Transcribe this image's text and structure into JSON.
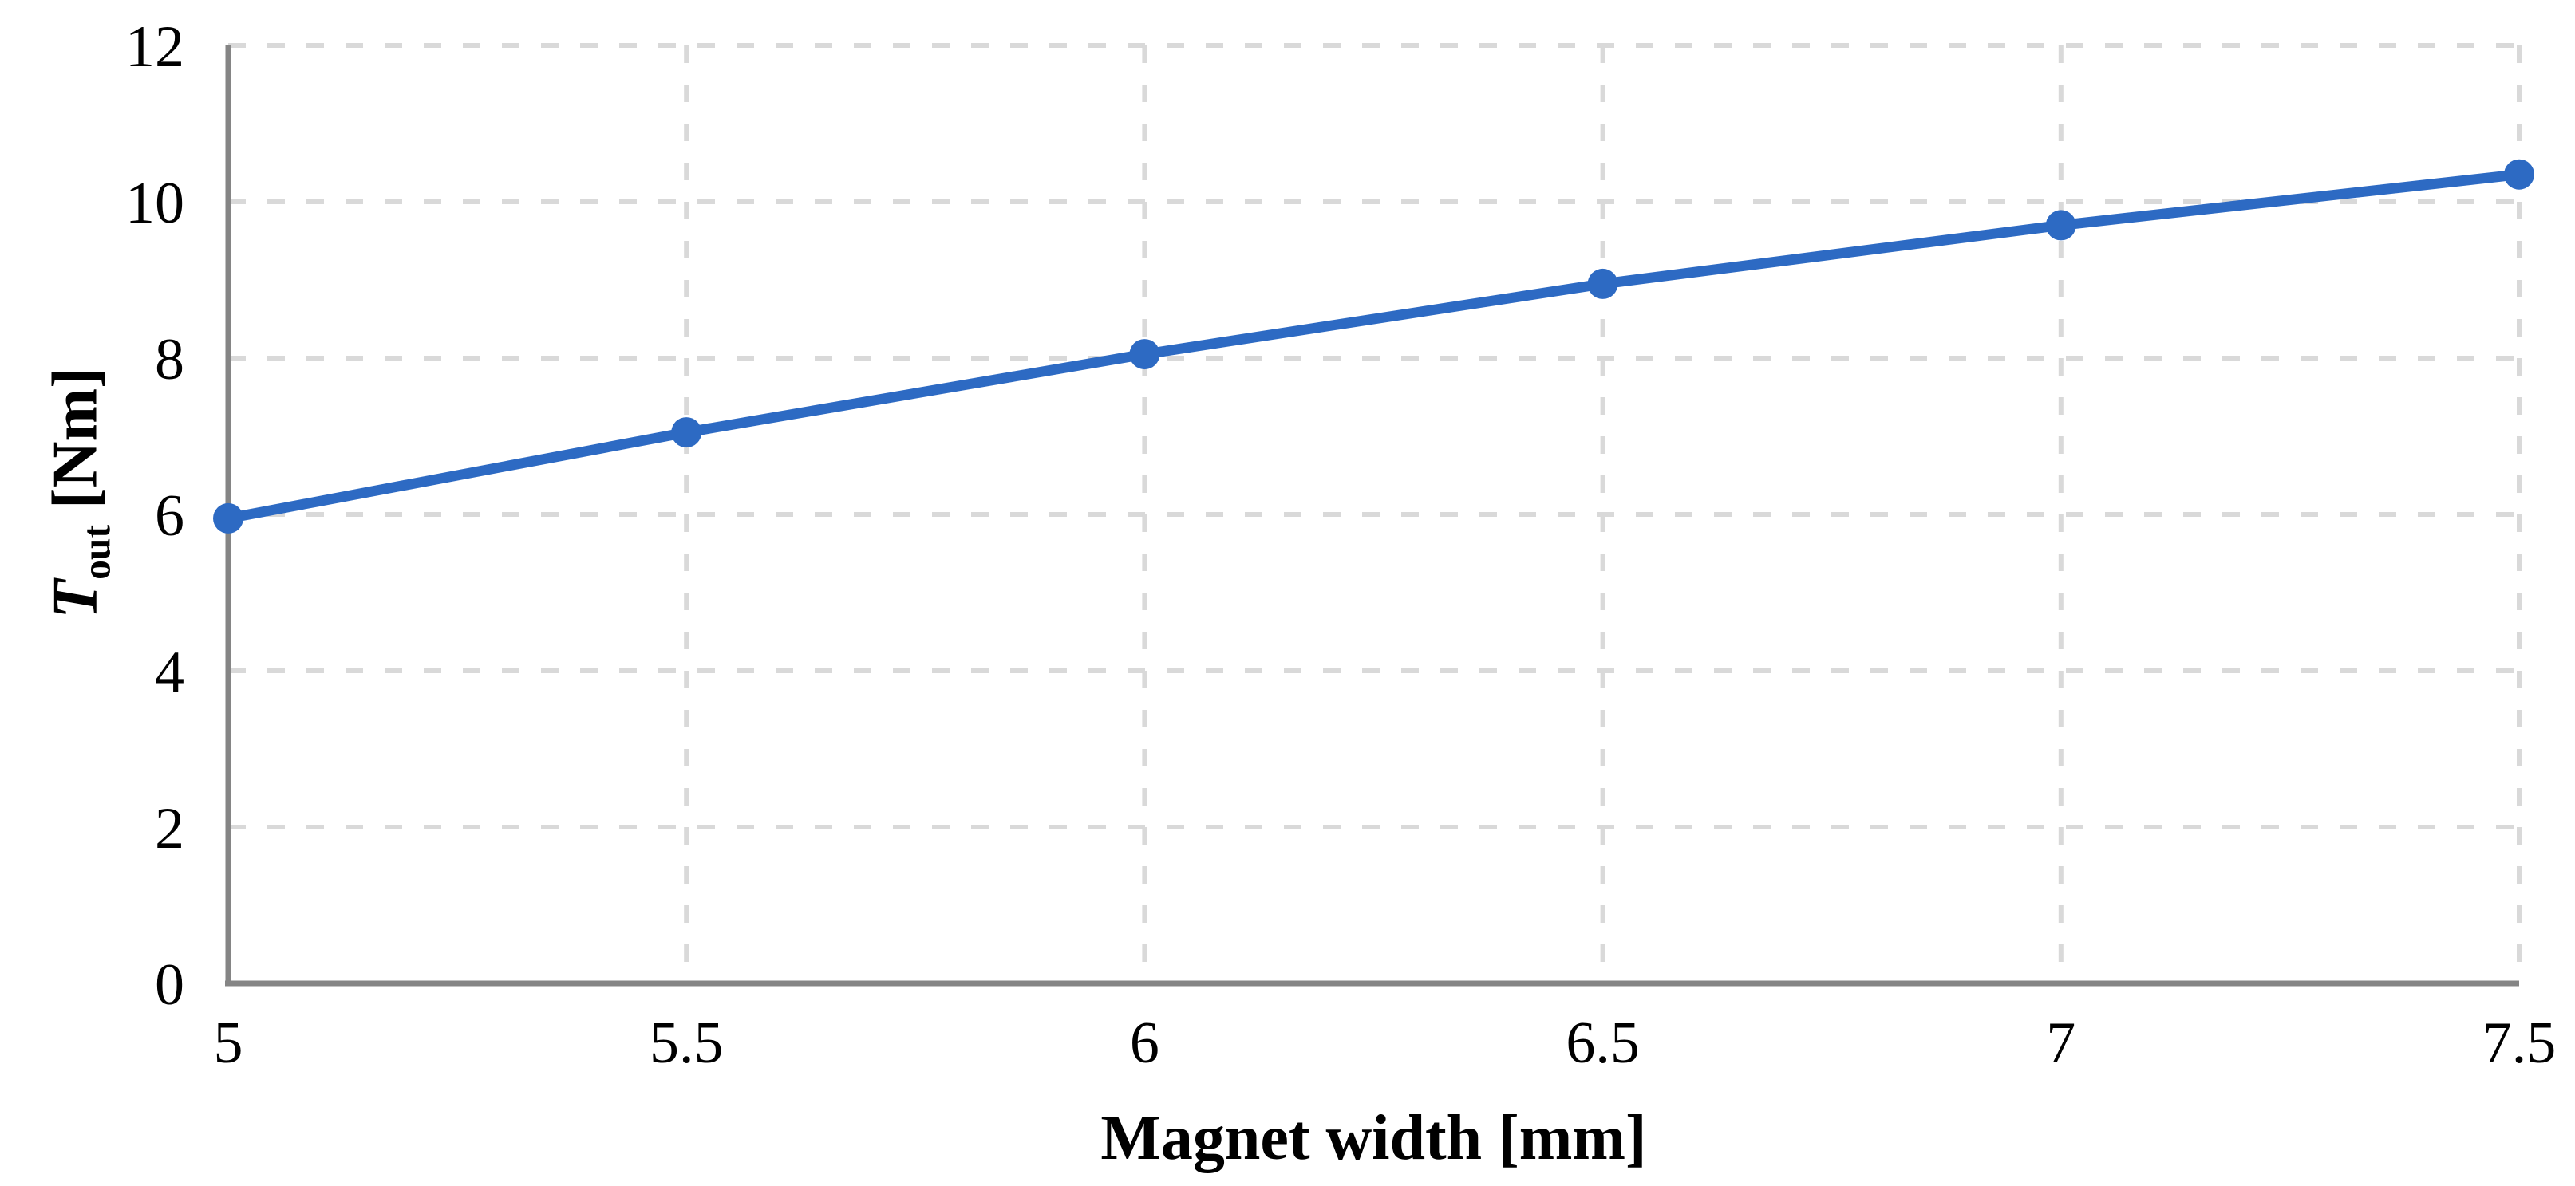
{
  "chart_data": {
    "type": "line",
    "title": "",
    "xlabel": "Magnet width [mm]",
    "ylabel": "T_out [Nm]",
    "ylabel_parts": {
      "symbol": "T",
      "subscript": "out",
      "unit": " [Nm]"
    },
    "x": [
      5,
      5.5,
      6,
      6.5,
      7,
      7.5
    ],
    "values": [
      5.95,
      7.05,
      8.05,
      8.95,
      9.7,
      10.35
    ],
    "xlim": [
      5,
      7.5
    ],
    "ylim": [
      0,
      12
    ],
    "x_ticks": [
      5,
      5.5,
      6,
      6.5,
      7,
      7.5
    ],
    "y_ticks": [
      0,
      2,
      4,
      6,
      8,
      10,
      12
    ],
    "grid": "dashed-horizontal-and-vertical",
    "legend": "none",
    "marker": "circle",
    "colors": {
      "series": "#2d6ac3",
      "gridline": "#d9d9d9",
      "axis": "#858585",
      "text": "#000000"
    }
  }
}
